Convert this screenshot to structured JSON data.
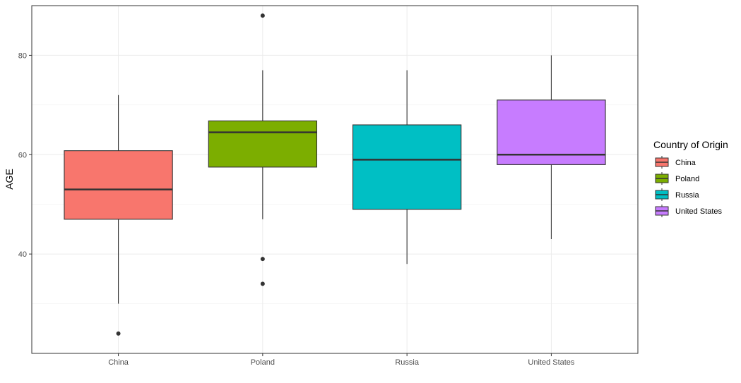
{
  "chart_data": {
    "type": "box",
    "title": "",
    "xlabel": "",
    "ylabel": "AGE",
    "ylim": [
      20.0,
      90.0
    ],
    "yticks": [
      40,
      60,
      80
    ],
    "grid": true,
    "legend_position": "right",
    "legend_title": "Country of Origin",
    "categories": [
      "China",
      "Poland",
      "Russia",
      "United States"
    ],
    "series": [
      {
        "name": "China",
        "color": "#F8766D",
        "whisker_low": 30,
        "q1": 47,
        "median": 53,
        "q3": 60.8,
        "whisker_high": 72,
        "outliers": [
          24
        ]
      },
      {
        "name": "Poland",
        "color": "#7CAE00",
        "whisker_low": 47,
        "q1": 57.5,
        "median": 64.5,
        "q3": 66.8,
        "whisker_high": 77,
        "outliers": [
          39,
          34,
          88
        ]
      },
      {
        "name": "Russia",
        "color": "#00BFC4",
        "whisker_low": 38,
        "q1": 49,
        "median": 59,
        "q3": 66,
        "whisker_high": 77,
        "outliers": []
      },
      {
        "name": "United States",
        "color": "#C77CFF",
        "whisker_low": 43,
        "q1": 58,
        "median": 60,
        "q3": 71,
        "whisker_high": 80,
        "outliers": []
      }
    ]
  }
}
